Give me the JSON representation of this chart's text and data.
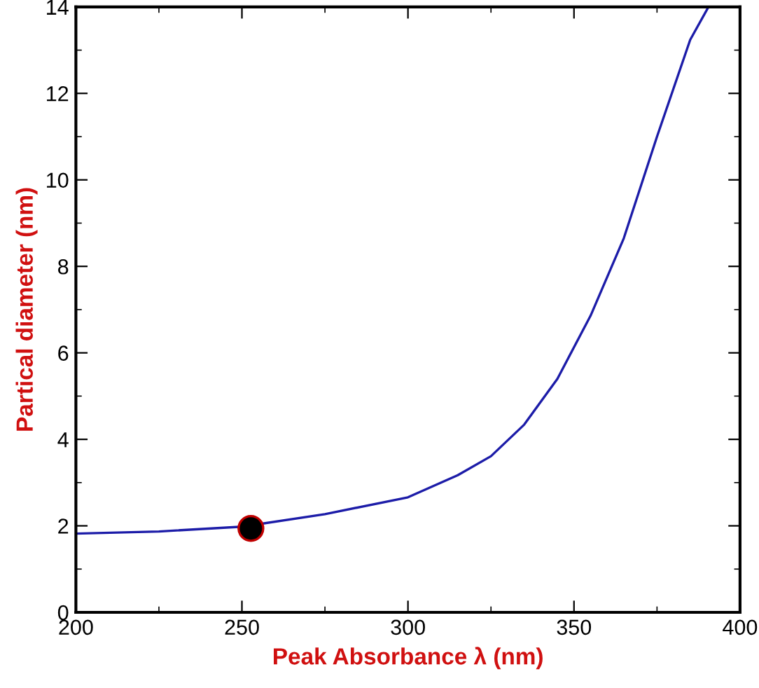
{
  "chart_data": {
    "type": "line",
    "xlabel": "Peak Absorbance λ (nm)",
    "ylabel": "Partical diameter (nm)",
    "xlim": [
      200,
      400
    ],
    "ylim": [
      0,
      14
    ],
    "xticks": [
      200,
      250,
      300,
      350,
      400
    ],
    "yticks": [
      0,
      2,
      4,
      6,
      8,
      10,
      12,
      14
    ],
    "grid": false,
    "legend": false,
    "series": [
      {
        "color": "#1c1ca8",
        "marker": "none",
        "line_style": "solid",
        "x": [
          200,
          225,
          250,
          275,
          300,
          315,
          325,
          335,
          345,
          355,
          365,
          375,
          385,
          390.5
        ],
        "values": [
          1.82,
          1.87,
          1.98,
          2.27,
          2.66,
          3.17,
          3.61,
          4.34,
          5.4,
          6.86,
          8.65,
          11.0,
          13.24,
          14.0
        ]
      },
      {
        "type": "scatter",
        "color": "#000000",
        "marker": "circle",
        "x": [
          252.7
        ],
        "values": [
          1.94
        ]
      }
    ]
  }
}
